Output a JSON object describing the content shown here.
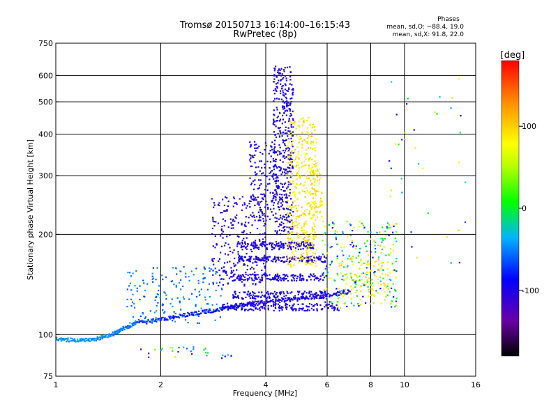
{
  "title": {
    "line1": "Tromsø 20150713 16:14:00–16:15:43",
    "line2": "RwPretec (8p)"
  },
  "stats": {
    "heading": "Phases",
    "o_line": "mean, sd,O: −88.4, 19.0",
    "x_line": "mean, sd,X:  91.8, 22.0"
  },
  "chart_data": {
    "type": "scatter",
    "title": "Tromsø 20150713 16:14:00–16:15:43",
    "subtitle": "RwPretec (8p)",
    "xlabel": "Frequency [MHz]",
    "ylabel": "Stationary phase Virtual Height [km]",
    "xscale": "log",
    "yscale": "log",
    "xlim": [
      1,
      16
    ],
    "ylim": [
      75,
      750
    ],
    "xticks": [
      1,
      2,
      4,
      6,
      8,
      10,
      16
    ],
    "xtick_labels": [
      "1",
      "2",
      "4",
      "6",
      "8",
      "10",
      "16"
    ],
    "xgrid": [
      2,
      4,
      6,
      8,
      10
    ],
    "yticks": [
      75,
      100,
      200,
      300,
      400,
      500,
      600,
      750
    ],
    "ytick_labels": [
      "75",
      "100",
      "200",
      "300",
      "400",
      "500",
      "600",
      "750"
    ],
    "ygrid": [
      100,
      200,
      300,
      400,
      500,
      600
    ],
    "grid": true,
    "colorbar": {
      "label": "[deg]",
      "range": [
        -180,
        180
      ],
      "ticks": [
        100,
        0,
        -100
      ],
      "tick_labels": [
        "100",
        "0",
        "-100"
      ],
      "colors": [
        "#000000",
        "#6a00a8",
        "#0000ff",
        "#00b4ff",
        "#00ff00",
        "#ffff00",
        "#ff8c00",
        "#ff0000"
      ]
    },
    "point_color": "phase_deg",
    "series": [
      {
        "traces": [
          {
            "f": 1.0,
            "h": 97,
            "phase": -45
          },
          {
            "f": 1.15,
            "h": 96,
            "phase": -45
          },
          {
            "f": 1.3,
            "h": 97,
            "phase": -45
          },
          {
            "f": 1.45,
            "h": 100,
            "phase": -50
          },
          {
            "f": 1.55,
            "h": 104,
            "phase": -55
          },
          {
            "f": 1.7,
            "h": 108,
            "phase": -70
          },
          {
            "f": 2.0,
            "h": 111,
            "phase": -80
          },
          {
            "f": 2.4,
            "h": 115,
            "phase": -85
          },
          {
            "f": 2.8,
            "h": 118,
            "phase": -90
          },
          {
            "f": 3.2,
            "h": 121,
            "phase": -95
          },
          {
            "f": 3.6,
            "h": 124,
            "phase": -100
          },
          {
            "f": 4.2,
            "h": 126,
            "phase": -100
          },
          {
            "f": 5.0,
            "h": 128,
            "phase": -100
          },
          {
            "f": 6.0,
            "h": 131,
            "phase": -100
          },
          {
            "f": 7.0,
            "h": 135,
            "phase": -95
          }
        ]
      }
    ]
  }
}
